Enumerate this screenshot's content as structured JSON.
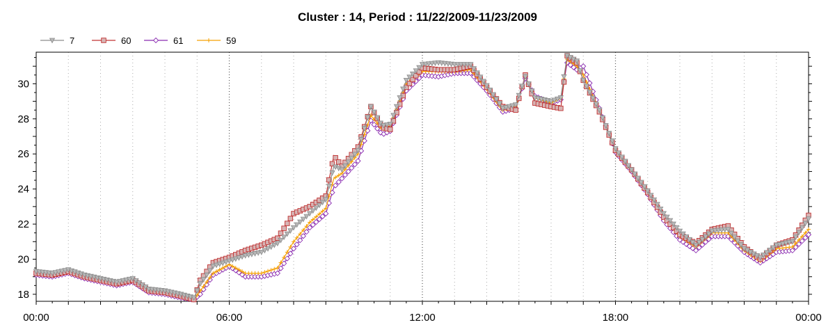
{
  "chart_data": {
    "type": "line",
    "title": "Cluster : 14, Period : 11/22/2009-11/23/2009",
    "xlabel": "",
    "ylabel": "",
    "x_ticks": [
      "00:00",
      "06:00",
      "12:00",
      "18:00",
      "00:00"
    ],
    "x_tick_hours": [
      0,
      6,
      12,
      18,
      24
    ],
    "x_range_hours": [
      0,
      24
    ],
    "y_ticks": [
      18,
      20,
      22,
      24,
      26,
      28,
      30
    ],
    "ylim": [
      17.6,
      31.8
    ],
    "grid": "vertical dotted",
    "legend_position": "top-left",
    "x_hours": [
      0,
      0.5,
      1,
      1.5,
      2,
      2.5,
      3,
      3.5,
      4,
      4.5,
      4.9,
      5.1,
      5.5,
      6,
      6.5,
      7,
      7.5,
      8,
      8.5,
      9,
      9.25,
      9.5,
      10,
      10.4,
      10.75,
      11,
      11.5,
      12,
      12.5,
      13,
      13.5,
      14,
      14.5,
      14.9,
      15.2,
      15.5,
      16,
      16.3,
      16.5,
      16.8,
      17,
      17.5,
      18,
      18.5,
      19,
      19.5,
      20,
      20.5,
      21,
      21.5,
      22,
      22.5,
      23,
      23.5,
      24
    ],
    "series": [
      {
        "name": "7",
        "color": "#8c8c8c",
        "marker": "triangle-down",
        "values": [
          19.3,
          19.2,
          19.4,
          19.1,
          18.9,
          18.7,
          18.9,
          18.3,
          18.2,
          18,
          17.8,
          18.6,
          19.6,
          19.9,
          20.2,
          20.4,
          20.9,
          21.8,
          22.6,
          23.4,
          25.3,
          25.1,
          26.2,
          28.7,
          27.6,
          27.7,
          30.2,
          31.1,
          31.2,
          31.1,
          31.1,
          29.9,
          28.6,
          28.8,
          30.4,
          29.2,
          29,
          29.2,
          31.6,
          31.3,
          30.2,
          28.5,
          26.3,
          25.1,
          23.9,
          22.6,
          21.6,
          20.8,
          21.6,
          21.7,
          20.6,
          20.1,
          20.8,
          21,
          22.3
        ]
      },
      {
        "name": "60",
        "color": "#c03030",
        "fill": "#d7b4b4",
        "marker": "square",
        "values": [
          19.2,
          19.1,
          19.3,
          19,
          18.8,
          18.6,
          18.8,
          18.2,
          18.1,
          17.9,
          17.7,
          18.8,
          19.8,
          20.1,
          20.5,
          20.8,
          21.2,
          22.6,
          23,
          23.6,
          25.9,
          25.3,
          26.4,
          28.7,
          27.5,
          27.4,
          29.8,
          30.9,
          30.8,
          30.8,
          31,
          29.8,
          28.7,
          28.5,
          30.5,
          28.9,
          28.7,
          28.6,
          31.6,
          31.2,
          30.2,
          28.4,
          26.2,
          25.1,
          23.8,
          22.4,
          21.4,
          20.9,
          21.7,
          21.9,
          20.7,
          20,
          20.8,
          21.1,
          22.5
        ]
      },
      {
        "name": "61",
        "color": "#8a2bb0",
        "marker": "diamond",
        "values": [
          19.1,
          19,
          19.2,
          18.9,
          18.7,
          18.5,
          18.7,
          18.1,
          18,
          17.8,
          17.7,
          18,
          19.1,
          19.6,
          19,
          19,
          19.2,
          20.6,
          21.8,
          22.6,
          24.1,
          24.6,
          25.6,
          27.9,
          27.1,
          27.3,
          29.6,
          30.5,
          30.4,
          30.6,
          30.6,
          29.6,
          28.4,
          28.6,
          30.3,
          29.3,
          28.9,
          29.1,
          31.2,
          30.8,
          31,
          28.6,
          26.1,
          25,
          23.7,
          22.2,
          21.1,
          20.5,
          21.3,
          21.3,
          20.4,
          19.8,
          20.4,
          20.5,
          21.4
        ]
      },
      {
        "name": "59",
        "color": "#f5a000",
        "marker": "plus",
        "values": [
          19.2,
          19.1,
          19.3,
          19,
          18.8,
          18.6,
          18.8,
          18.2,
          18.1,
          17.9,
          17.7,
          18.2,
          19.2,
          19.7,
          19.2,
          19.2,
          19.5,
          21,
          22.1,
          22.9,
          24.6,
          24.9,
          26,
          28.2,
          27.4,
          27.6,
          30,
          30.7,
          30.7,
          30.7,
          30.8,
          29.7,
          28.5,
          28.7,
          30.4,
          29.2,
          28.9,
          29.2,
          31.4,
          31,
          30.5,
          28.5,
          26.2,
          25.1,
          23.8,
          22.4,
          21.3,
          20.7,
          21.5,
          21.5,
          20.5,
          19.9,
          20.6,
          20.7,
          21.7
        ]
      }
    ]
  }
}
